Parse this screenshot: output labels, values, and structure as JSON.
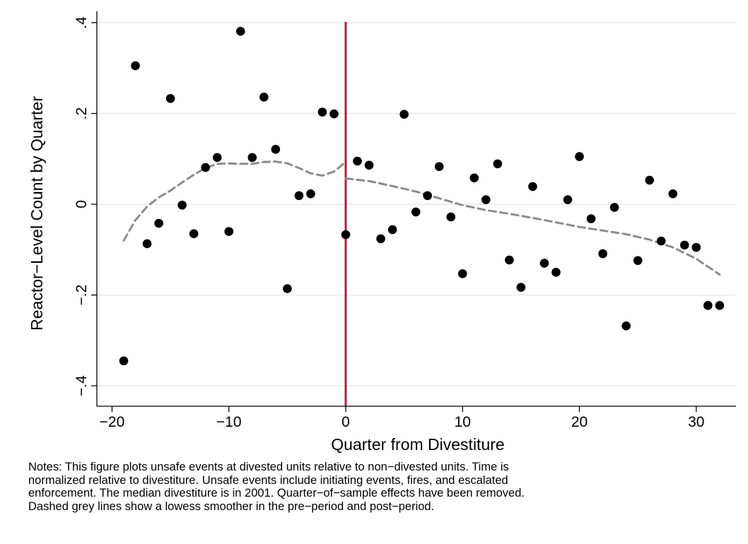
{
  "chart_data": {
    "type": "scatter",
    "xlabel": "Quarter from Divestiture",
    "ylabel": "Reactor−Level Count by Quarter",
    "xlim": [
      -21.3,
      33.4
    ],
    "ylim": [
      -0.445,
      0.425
    ],
    "xticks": [
      -20,
      -10,
      0,
      10,
      20,
      30
    ],
    "xtick_labels": [
      "−20",
      "−10",
      "0",
      "10",
      "20",
      "30"
    ],
    "yticks": [
      -0.4,
      -0.2,
      0,
      0.2,
      0.4
    ],
    "ytick_labels": [
      "−.4",
      "−.2",
      "0",
      ".2",
      ".4"
    ],
    "grid": "horizontal",
    "vertical_line": {
      "x": 0,
      "color": "#b01f3c"
    },
    "points": [
      [
        -19,
        -0.345
      ],
      [
        -18,
        0.305
      ],
      [
        -17,
        -0.087
      ],
      [
        -16,
        -0.042
      ],
      [
        -15,
        0.233
      ],
      [
        -14,
        -0.002
      ],
      [
        -13,
        -0.065
      ],
      [
        -12,
        0.081
      ],
      [
        -11,
        0.103
      ],
      [
        -10,
        -0.06
      ],
      [
        -9,
        0.381
      ],
      [
        -8,
        0.103
      ],
      [
        -7,
        0.236
      ],
      [
        -6,
        0.121
      ],
      [
        -5,
        -0.186
      ],
      [
        -4,
        0.019
      ],
      [
        -3,
        0.023
      ],
      [
        -2,
        0.203
      ],
      [
        -1,
        0.199
      ],
      [
        0,
        -0.067
      ],
      [
        1,
        0.095
      ],
      [
        2,
        0.086
      ],
      [
        3,
        -0.076
      ],
      [
        4,
        -0.056
      ],
      [
        5,
        0.198
      ],
      [
        6,
        -0.017
      ],
      [
        7,
        0.019
      ],
      [
        8,
        0.083
      ],
      [
        9,
        -0.028
      ],
      [
        10,
        -0.153
      ],
      [
        11,
        0.058
      ],
      [
        12,
        0.01
      ],
      [
        13,
        0.089
      ],
      [
        14,
        -0.123
      ],
      [
        15,
        -0.183
      ],
      [
        16,
        0.039
      ],
      [
        17,
        -0.13
      ],
      [
        18,
        -0.15
      ],
      [
        19,
        0.01
      ],
      [
        20,
        0.105
      ],
      [
        21,
        -0.032
      ],
      [
        22,
        -0.109
      ],
      [
        23,
        -0.007
      ],
      [
        24,
        -0.268
      ],
      [
        25,
        -0.124
      ],
      [
        26,
        0.053
      ],
      [
        27,
        -0.081
      ],
      [
        28,
        0.023
      ],
      [
        29,
        -0.09
      ],
      [
        30,
        -0.095
      ],
      [
        31,
        -0.223
      ],
      [
        32,
        -0.223
      ]
    ],
    "smoother_pre": [
      [
        -19,
        -0.08
      ],
      [
        -18,
        -0.035
      ],
      [
        -17,
        -0.005
      ],
      [
        -16,
        0.015
      ],
      [
        -15,
        0.03
      ],
      [
        -14,
        0.048
      ],
      [
        -13,
        0.065
      ],
      [
        -12,
        0.08
      ],
      [
        -11,
        0.089
      ],
      [
        -10,
        0.09
      ],
      [
        -9,
        0.089
      ],
      [
        -8,
        0.089
      ],
      [
        -7,
        0.093
      ],
      [
        -6,
        0.094
      ],
      [
        -5,
        0.09
      ],
      [
        -4,
        0.08
      ],
      [
        -3,
        0.068
      ],
      [
        -2,
        0.063
      ],
      [
        -1,
        0.072
      ],
      [
        0,
        0.093
      ]
    ],
    "smoother_post": [
      [
        0,
        0.057
      ],
      [
        2,
        0.051
      ],
      [
        4,
        0.04
      ],
      [
        6,
        0.028
      ],
      [
        8,
        0.013
      ],
      [
        10,
        -0.002
      ],
      [
        12,
        -0.013
      ],
      [
        14,
        -0.021
      ],
      [
        16,
        -0.03
      ],
      [
        18,
        -0.04
      ],
      [
        20,
        -0.05
      ],
      [
        22,
        -0.058
      ],
      [
        24,
        -0.066
      ],
      [
        26,
        -0.078
      ],
      [
        28,
        -0.095
      ],
      [
        30,
        -0.12
      ],
      [
        32,
        -0.155
      ]
    ],
    "marker_color": "#000000",
    "smoother_color": "#8c8c8c",
    "grid_color": "#e3ecef"
  },
  "notes": {
    "line1": "Notes: This figure plots unsafe events at divested units relative to non−divested units. Time is",
    "line2": "normalized relative to divestiture. Unsafe events include initiating events, fires, and escalated",
    "line3": "enforcement. The median divestiture is in 2001. Quarter−of−sample effects have been removed.",
    "line4": "Dashed grey lines show a lowess smoother in the pre−period and post−period."
  }
}
